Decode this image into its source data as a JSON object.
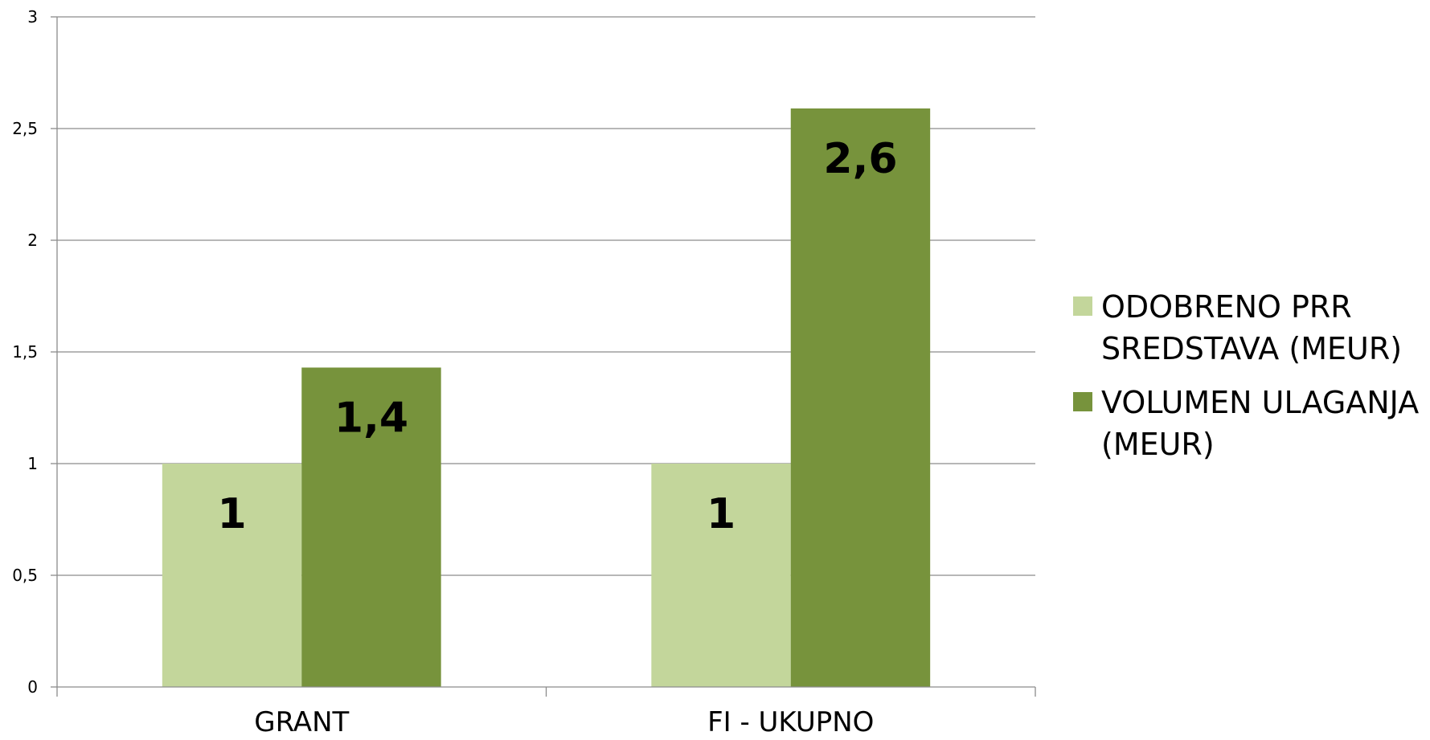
{
  "chart_data": {
    "type": "bar",
    "title": "",
    "xlabel": "",
    "ylabel": "",
    "categories": [
      "GRANT",
      "FI - UKUPNO"
    ],
    "series": [
      {
        "name": "ODOBRENO PRR SREDSTAVA (MEUR)",
        "values": [
          1,
          1
        ],
        "data_labels": [
          "1",
          "1"
        ],
        "color": "#c3d69b"
      },
      {
        "name": "VOLUMEN ULAGANJA (MEUR)",
        "values": [
          1.43,
          2.59
        ],
        "data_labels": [
          "1,4",
          "2,6"
        ],
        "color": "#77933c"
      }
    ],
    "ylim": [
      0,
      3
    ],
    "yticks": [
      0,
      0.5,
      1,
      1.5,
      2,
      2.5,
      3
    ],
    "ytick_labels": [
      "0",
      "0,5",
      "1",
      "1,5",
      "2",
      "2,5",
      "3"
    ],
    "grid": true,
    "legend": {
      "position": "right",
      "entries": [
        [
          "ODOBRENO PRR",
          "SREDSTAVA (MEUR)"
        ],
        [
          "VOLUMEN ULAGANJA",
          "(MEUR)"
        ]
      ]
    }
  }
}
